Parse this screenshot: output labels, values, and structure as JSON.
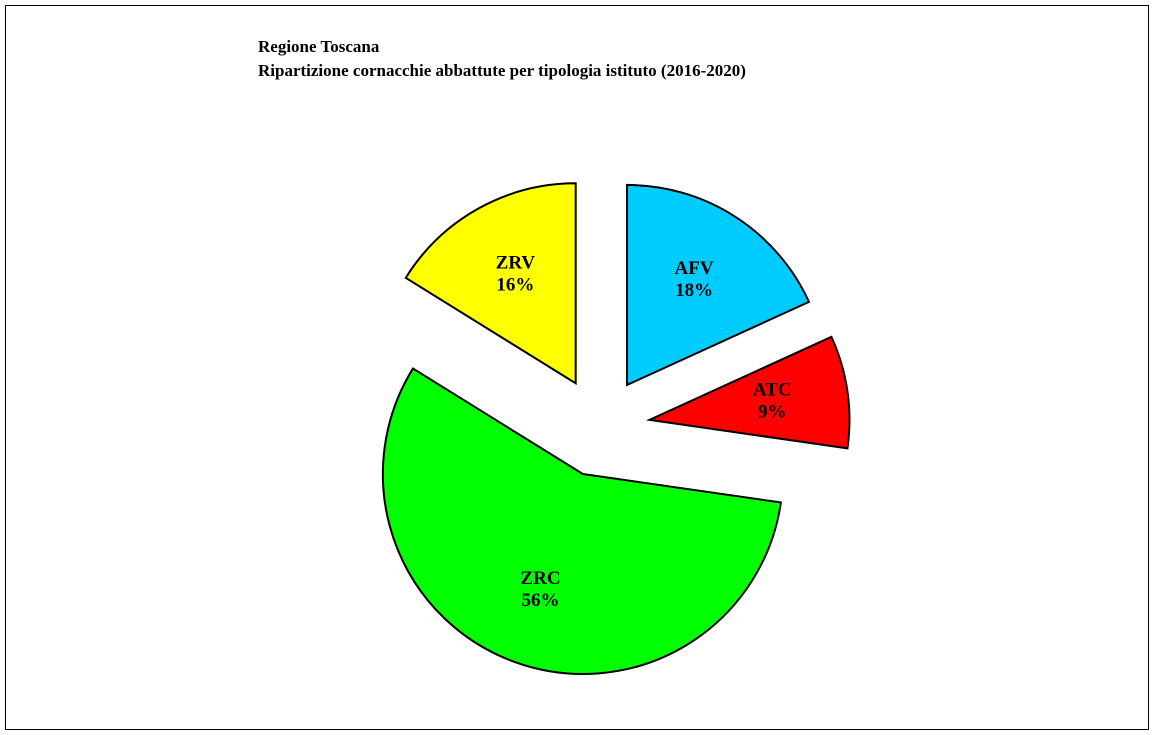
{
  "chart_data": {
    "type": "pie",
    "title": "Regione Toscana",
    "subtitle": "Ripartizione cornacchie abbattute per tipologia istituto (2016-2020)",
    "categories": [
      "AFV",
      "ATC",
      "ZRC",
      "ZRV"
    ],
    "values": [
      18,
      9,
      56,
      16
    ],
    "value_labels": [
      "18%",
      "9%",
      "56%",
      "16%"
    ],
    "colors": [
      "#00ccff",
      "#ff0000",
      "#00ff00",
      "#ffff00"
    ],
    "exploded": true
  }
}
